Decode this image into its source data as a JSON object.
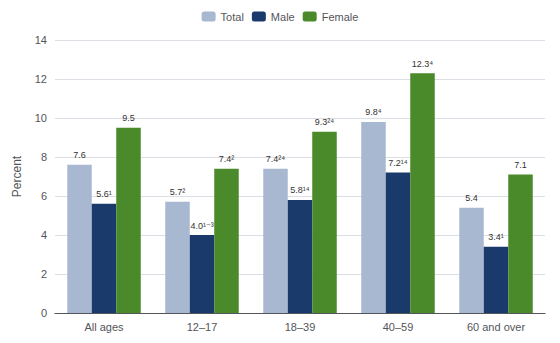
{
  "chart_data": {
    "type": "bar",
    "ylabel": "Percent",
    "categories": [
      "All ages",
      "12–17",
      "18–39",
      "40–59",
      "60 and over"
    ],
    "series": [
      {
        "name": "Total",
        "color": "#a8b8d0",
        "values": [
          7.6,
          5.7,
          7.4,
          9.8,
          5.4
        ],
        "value_labels": [
          "7.6",
          "5.7²",
          "7.4²⁴",
          "9.8⁴",
          "5.4"
        ]
      },
      {
        "name": "Male",
        "color": "#1a3a6b",
        "values": [
          5.6,
          4.0,
          5.8,
          7.2,
          3.4
        ],
        "value_labels": [
          "5.6¹",
          "4.0¹⁻³",
          "5.8¹⁴",
          "7.2¹⁴",
          "3.4¹"
        ]
      },
      {
        "name": "Female",
        "color": "#4a8a2a",
        "values": [
          9.5,
          7.4,
          9.3,
          12.3,
          7.1
        ],
        "value_labels": [
          "9.5",
          "7.4²",
          "9.3²⁴",
          "12.3⁴",
          "7.1"
        ]
      }
    ],
    "ylim": [
      0,
      14
    ],
    "yticks": [
      0,
      2,
      4,
      6,
      8,
      10,
      12,
      14
    ],
    "grid": true,
    "legend": "top",
    "data_labels": true
  }
}
